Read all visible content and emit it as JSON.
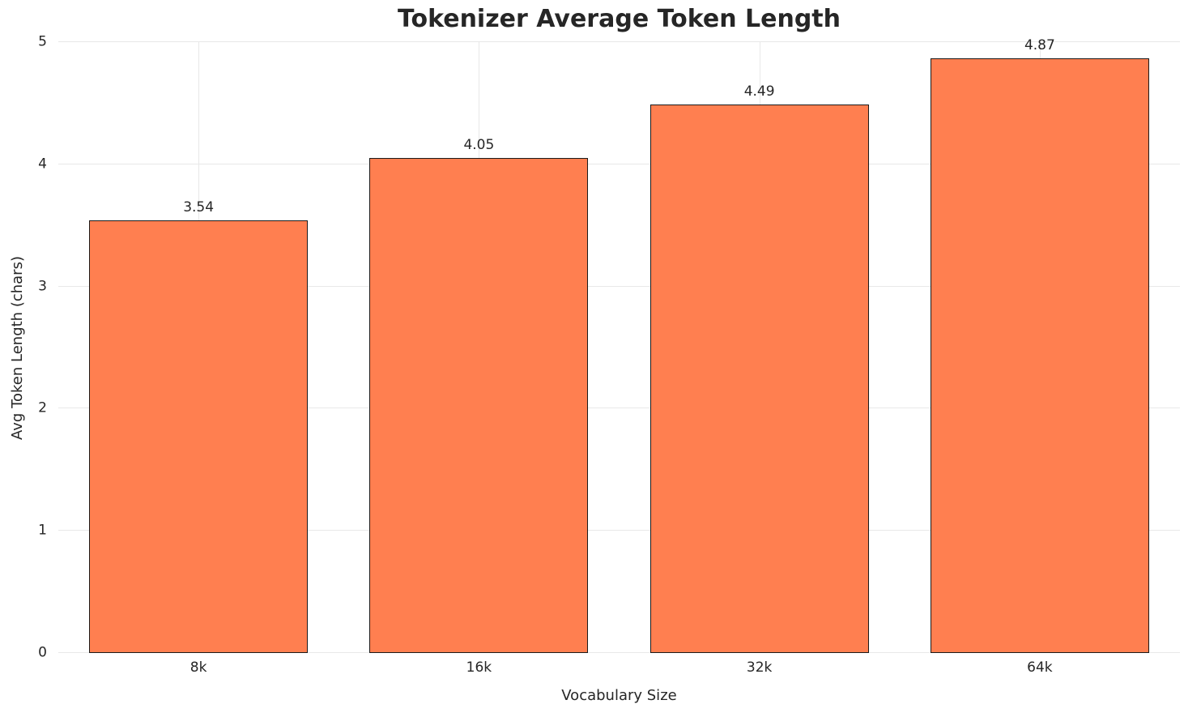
{
  "chart_data": {
    "type": "bar",
    "title": "Tokenizer Average Token Length",
    "xlabel": "Vocabulary Size",
    "ylabel": "Avg Token Length (chars)",
    "categories": [
      "8k",
      "16k",
      "32k",
      "64k"
    ],
    "values": [
      3.54,
      4.05,
      4.49,
      4.87
    ],
    "value_labels": [
      "3.54",
      "4.05",
      "4.49",
      "4.87"
    ],
    "ylim": [
      0,
      5
    ],
    "yticks": [
      0,
      1,
      2,
      3,
      4,
      5
    ],
    "grid": true,
    "legend_position": "none",
    "bar_color": "#FF7F50",
    "bar_edge_color": "#1a1a1a",
    "grid_color": "#e8e8e8",
    "text_color": "#262626",
    "background_color": "#ffffff"
  }
}
